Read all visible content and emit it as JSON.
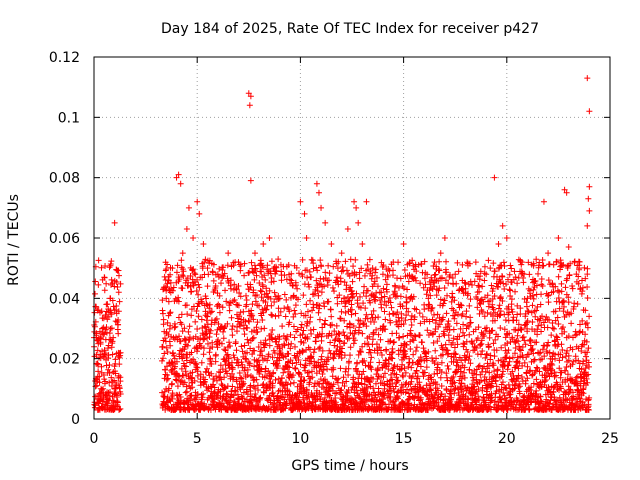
{
  "chart_data": {
    "type": "scatter",
    "title": "Day 184 of 2025, Rate Of TEC Index for receiver p427",
    "xlabel": "GPS time / hours",
    "ylabel": "ROTI / TECUs",
    "xlim": [
      0,
      25
    ],
    "ylim": [
      0,
      0.12
    ],
    "xticks": [
      0,
      5,
      10,
      15,
      20,
      25
    ],
    "xtick_labels": [
      "0",
      "5",
      "10",
      "15",
      "20",
      "25"
    ],
    "yticks": [
      0,
      0.02,
      0.04,
      0.06,
      0.08,
      0.1,
      0.12
    ],
    "ytick_labels": [
      "0",
      "0.02",
      "0.04",
      "0.06",
      "0.08",
      "0.1",
      "0.12"
    ],
    "grid": true,
    "marker": "+",
    "color": "#ff0000",
    "data_gap_hours": [
      1.3,
      3.3
    ],
    "series": [
      {
        "name": "ROTI",
        "points": [
          [
            0.1,
            0.027
          ],
          [
            0.2,
            0.018
          ],
          [
            0.4,
            0.03
          ],
          [
            0.5,
            0.047
          ],
          [
            0.6,
            0.038
          ],
          [
            0.8,
            0.04
          ],
          [
            0.9,
            0.045
          ],
          [
            1.0,
            0.065
          ],
          [
            1.1,
            0.035
          ],
          [
            1.2,
            0.042
          ],
          [
            3.5,
            0.04
          ],
          [
            3.8,
            0.05
          ],
          [
            4.0,
            0.08
          ],
          [
            4.1,
            0.081
          ],
          [
            4.2,
            0.078
          ],
          [
            4.3,
            0.055
          ],
          [
            4.5,
            0.063
          ],
          [
            4.6,
            0.07
          ],
          [
            4.8,
            0.06
          ],
          [
            5.0,
            0.072
          ],
          [
            5.1,
            0.068
          ],
          [
            5.3,
            0.058
          ],
          [
            5.5,
            0.05
          ],
          [
            6.0,
            0.048
          ],
          [
            6.5,
            0.055
          ],
          [
            7.0,
            0.052
          ],
          [
            7.5,
            0.108
          ],
          [
            7.6,
            0.107
          ],
          [
            7.55,
            0.104
          ],
          [
            7.6,
            0.079
          ],
          [
            7.8,
            0.055
          ],
          [
            8.2,
            0.058
          ],
          [
            8.5,
            0.06
          ],
          [
            9.0,
            0.04
          ],
          [
            9.5,
            0.045
          ],
          [
            10.0,
            0.072
          ],
          [
            10.2,
            0.068
          ],
          [
            10.3,
            0.06
          ],
          [
            10.8,
            0.078
          ],
          [
            10.9,
            0.075
          ],
          [
            11.0,
            0.07
          ],
          [
            11.2,
            0.065
          ],
          [
            11.5,
            0.058
          ],
          [
            12.0,
            0.055
          ],
          [
            12.3,
            0.063
          ],
          [
            12.6,
            0.072
          ],
          [
            12.7,
            0.07
          ],
          [
            12.8,
            0.065
          ],
          [
            13.0,
            0.058
          ],
          [
            13.2,
            0.072
          ],
          [
            13.5,
            0.05
          ],
          [
            14.0,
            0.048
          ],
          [
            14.5,
            0.052
          ],
          [
            15.0,
            0.058
          ],
          [
            15.3,
            0.052
          ],
          [
            15.8,
            0.045
          ],
          [
            16.2,
            0.04
          ],
          [
            16.5,
            0.052
          ],
          [
            16.8,
            0.055
          ],
          [
            17.0,
            0.06
          ],
          [
            17.5,
            0.048
          ],
          [
            18.0,
            0.045
          ],
          [
            18.5,
            0.052
          ],
          [
            19.0,
            0.048
          ],
          [
            19.2,
            0.05
          ],
          [
            19.4,
            0.08
          ],
          [
            19.6,
            0.058
          ],
          [
            19.8,
            0.064
          ],
          [
            20.0,
            0.06
          ],
          [
            20.5,
            0.045
          ],
          [
            21.0,
            0.04
          ],
          [
            21.5,
            0.033
          ],
          [
            21.8,
            0.072
          ],
          [
            22.0,
            0.055
          ],
          [
            22.5,
            0.06
          ],
          [
            22.8,
            0.076
          ],
          [
            22.9,
            0.075
          ],
          [
            23.0,
            0.057
          ],
          [
            23.5,
            0.05
          ],
          [
            23.9,
            0.113
          ],
          [
            24.0,
            0.102
          ],
          [
            24.0,
            0.077
          ],
          [
            23.95,
            0.073
          ],
          [
            24.0,
            0.069
          ],
          [
            23.9,
            0.064
          ]
        ]
      }
    ]
  }
}
